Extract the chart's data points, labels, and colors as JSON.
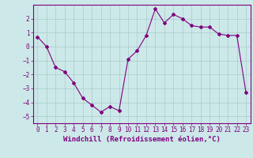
{
  "x": [
    0,
    1,
    2,
    3,
    4,
    5,
    6,
    7,
    8,
    9,
    10,
    11,
    12,
    13,
    14,
    15,
    16,
    17,
    18,
    19,
    20,
    21,
    22,
    23
  ],
  "y": [
    0.7,
    0.0,
    -1.5,
    -1.8,
    -2.6,
    -3.7,
    -4.2,
    -4.7,
    -4.3,
    -4.6,
    -0.9,
    -0.3,
    0.8,
    2.7,
    1.7,
    2.3,
    2.0,
    1.5,
    1.4,
    1.4,
    0.9,
    0.8,
    0.8,
    -3.3
  ],
  "line_color": "#800080",
  "marker": "D",
  "marker_size": 2,
  "bg_color": "#cce8e8",
  "grid_color": "#aacccc",
  "xlabel": "Windchill (Refroidissement éolien,°C)",
  "xlabel_fontsize": 6.5,
  "tick_fontsize": 5.5,
  "ylim": [
    -5.5,
    3.0
  ],
  "yticks": [
    -5,
    -4,
    -3,
    -2,
    -1,
    0,
    1,
    2
  ],
  "xlim": [
    -0.5,
    23.5
  ],
  "xticks": [
    0,
    1,
    2,
    3,
    4,
    5,
    6,
    7,
    8,
    9,
    10,
    11,
    12,
    13,
    14,
    15,
    16,
    17,
    18,
    19,
    20,
    21,
    22,
    23
  ]
}
